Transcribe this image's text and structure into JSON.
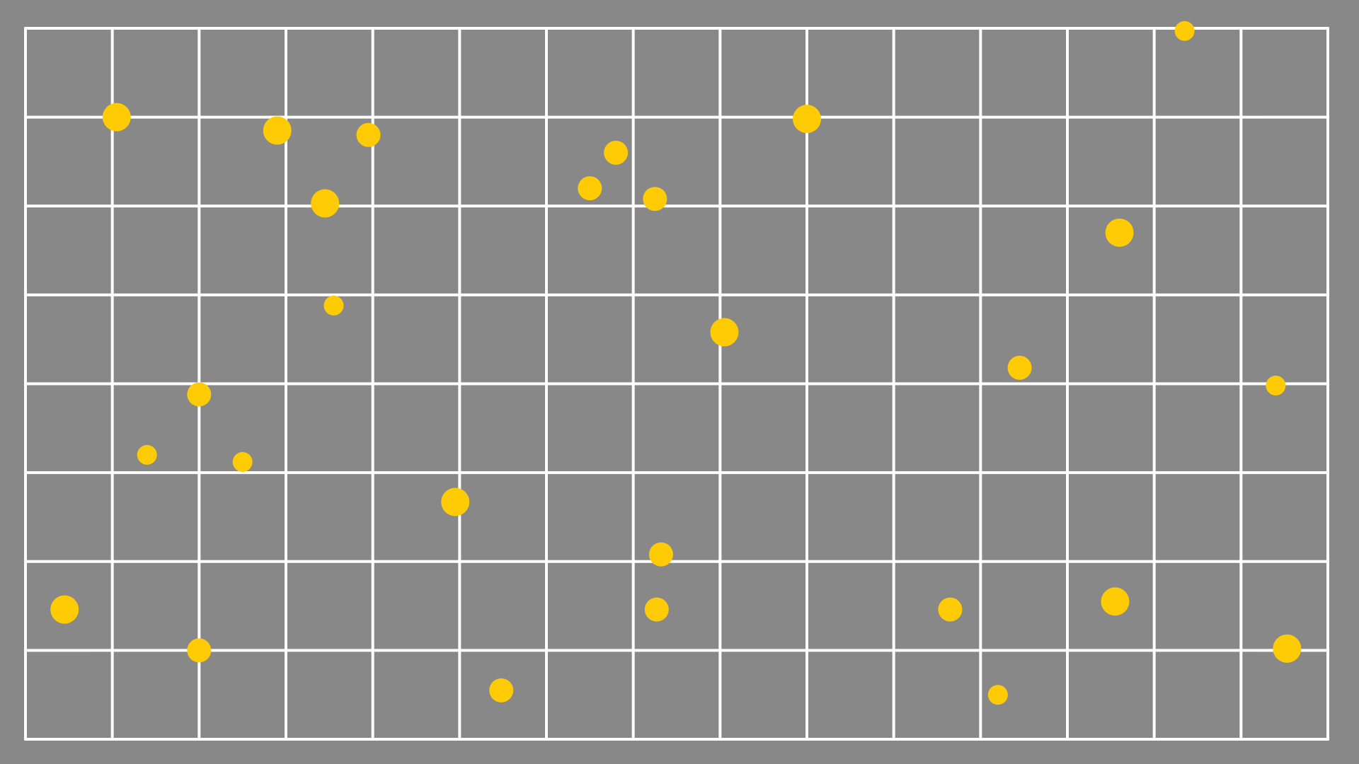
{
  "colors": {
    "background": "#888888",
    "grid_line": "#ffffff",
    "dot": "#ffcb05"
  },
  "grid": {
    "columns": 15,
    "rows": 8
  },
  "dots": [
    {
      "col": 1.05,
      "row": 1.0,
      "size": "large"
    },
    {
      "col": 2.9,
      "row": 1.15,
      "size": "large"
    },
    {
      "col": 3.95,
      "row": 1.2,
      "size": "medium"
    },
    {
      "col": 3.45,
      "row": 1.97,
      "size": "large"
    },
    {
      "col": 6.8,
      "row": 1.4,
      "size": "medium"
    },
    {
      "col": 6.5,
      "row": 1.8,
      "size": "medium"
    },
    {
      "col": 7.25,
      "row": 1.92,
      "size": "medium"
    },
    {
      "col": 9.0,
      "row": 1.02,
      "size": "large"
    },
    {
      "col": 13.35,
      "row": 0.03,
      "size": "small"
    },
    {
      "col": 12.6,
      "row": 2.3,
      "size": "large"
    },
    {
      "col": 3.55,
      "row": 3.12,
      "size": "small"
    },
    {
      "col": 8.05,
      "row": 3.42,
      "size": "large"
    },
    {
      "col": 11.45,
      "row": 3.82,
      "size": "medium"
    },
    {
      "col": 14.4,
      "row": 4.02,
      "size": "small"
    },
    {
      "col": 2.0,
      "row": 4.12,
      "size": "medium"
    },
    {
      "col": 1.4,
      "row": 4.8,
      "size": "small"
    },
    {
      "col": 2.5,
      "row": 4.88,
      "size": "small"
    },
    {
      "col": 4.95,
      "row": 5.33,
      "size": "large"
    },
    {
      "col": 7.32,
      "row": 5.92,
      "size": "medium"
    },
    {
      "col": 0.45,
      "row": 6.54,
      "size": "large"
    },
    {
      "col": 7.27,
      "row": 6.54,
      "size": "medium"
    },
    {
      "col": 10.65,
      "row": 6.54,
      "size": "medium"
    },
    {
      "col": 12.55,
      "row": 6.45,
      "size": "large"
    },
    {
      "col": 2.0,
      "row": 7.0,
      "size": "medium"
    },
    {
      "col": 5.48,
      "row": 7.45,
      "size": "medium"
    },
    {
      "col": 11.2,
      "row": 7.5,
      "size": "small"
    },
    {
      "col": 14.53,
      "row": 6.98,
      "size": "large"
    }
  ]
}
